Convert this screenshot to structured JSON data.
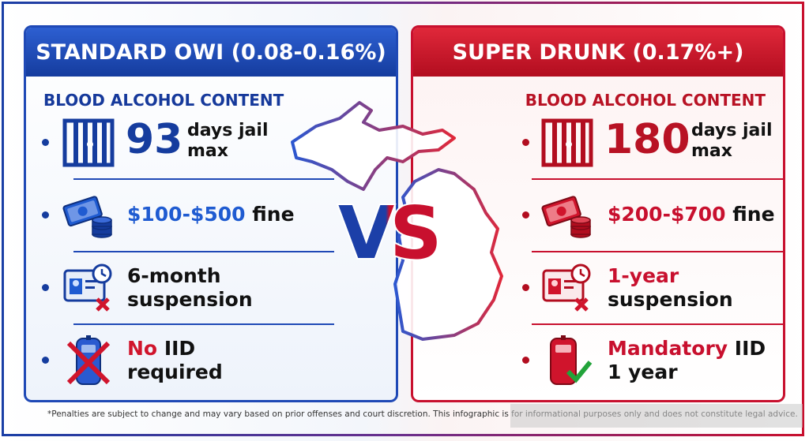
{
  "left": {
    "title": "STANDARD OWI (0.08-0.16%)",
    "bac_label": "BLOOD ALCOHOL CONTENT",
    "jail": {
      "number": "93",
      "text_line1": "days jail",
      "text_line2": "max",
      "icon": "jail-bars-icon"
    },
    "fine": {
      "amount": "$100-$500",
      "suffix": "fine",
      "icon": "money-stack-icon"
    },
    "suspension": {
      "line1": "6-month",
      "line2": "suspension",
      "icon": "license-clock-x-icon"
    },
    "iid": {
      "accent": "No",
      "rest": "IID",
      "line2": "required",
      "icon": "iid-device-x-icon"
    }
  },
  "right": {
    "title": "SUPER DRUNK (0.17%+)",
    "bac_label": "BLOOD ALCOHOL CONTENT",
    "jail": {
      "number": "180",
      "text_line1": "days jail",
      "text_line2": "max",
      "icon": "jail-bars-icon"
    },
    "fine": {
      "amount": "$200-$700",
      "suffix": "fine",
      "icon": "money-stack-icon"
    },
    "suspension": {
      "line1": "1-year",
      "line2": "suspension",
      "icon": "license-clock-x-icon"
    },
    "iid": {
      "accent": "Mandatory",
      "rest": "IID",
      "line2": "1 year",
      "icon": "iid-device-check-icon"
    }
  },
  "center": {
    "vs": "VS",
    "map_icon": "michigan-map-icon"
  },
  "colors": {
    "blue": "#1f49b6",
    "red": "#c8102e"
  },
  "footnote": "*Penalties are subject to change and may vary based on prior offenses and court discretion. This infographic is for informational purposes only and does not constitute legal advice."
}
